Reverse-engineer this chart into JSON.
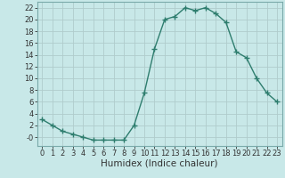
{
  "x": [
    0,
    1,
    2,
    3,
    4,
    5,
    6,
    7,
    8,
    9,
    10,
    11,
    12,
    13,
    14,
    15,
    16,
    17,
    18,
    19,
    20,
    21,
    22,
    23
  ],
  "y": [
    3,
    2,
    1,
    0.5,
    0,
    -0.5,
    -0.5,
    -0.5,
    -0.5,
    2,
    7.5,
    15,
    20,
    20.5,
    22,
    21.5,
    22,
    21,
    19.5,
    14.5,
    13.5,
    10,
    7.5,
    6
  ],
  "line_color": "#2e7d6e",
  "marker": "+",
  "marker_size": 4,
  "background_color": "#c8e8e8",
  "grid_color": "#b0cccc",
  "grid_color_minor": "#d4e8e8",
  "xlabel": "Humidex (Indice chaleur)",
  "xlim": [
    -0.5,
    23.5
  ],
  "ylim": [
    -1.5,
    23
  ],
  "yticks": [
    0,
    2,
    4,
    6,
    8,
    10,
    12,
    14,
    16,
    18,
    20,
    22
  ],
  "ytick_labels": [
    "-0",
    "2",
    "4",
    "6",
    "8",
    "10",
    "12",
    "14",
    "16",
    "18",
    "20",
    "22"
  ],
  "xticks": [
    0,
    1,
    2,
    3,
    4,
    5,
    6,
    7,
    8,
    9,
    10,
    11,
    12,
    13,
    14,
    15,
    16,
    17,
    18,
    19,
    20,
    21,
    22,
    23
  ],
  "tick_fontsize": 6,
  "xlabel_fontsize": 7.5,
  "line_width": 1.0,
  "marker_linewidth": 1.0
}
